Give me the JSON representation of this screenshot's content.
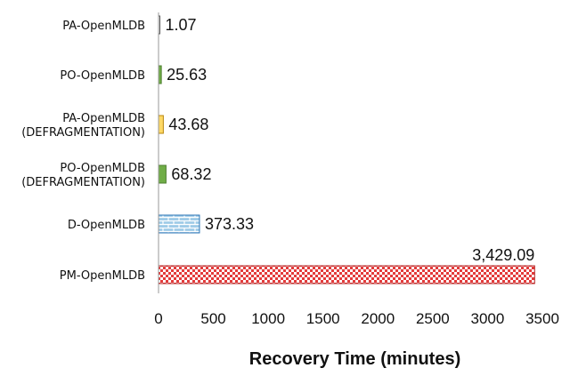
{
  "chart_data": {
    "type": "bar",
    "orientation": "horizontal",
    "categories": [
      [
        "PA-OpenMLDB"
      ],
      [
        "PO-OpenMLDB"
      ],
      [
        "PA-OpenMLDB",
        "(DEFRAGMENTATION)"
      ],
      [
        "PO-OpenMLDB",
        "(DEFRAGMENTATION)"
      ],
      [
        "D-OpenMLDB"
      ],
      [
        "PM-OpenMLDB"
      ]
    ],
    "values": [
      1.07,
      25.63,
      43.68,
      68.32,
      373.33,
      3429.09
    ],
    "value_labels": [
      "1.07",
      "25.63",
      "43.68",
      "68.32",
      "373.33",
      "3,429.09"
    ],
    "bar_styles": [
      {
        "fill": "#ffffff",
        "stroke": "#555555",
        "pattern": "none"
      },
      {
        "fill": "#70ad47",
        "stroke": "#4e7f30",
        "pattern": "none"
      },
      {
        "fill": "#ffd966",
        "stroke": "#b8860b",
        "pattern": "none"
      },
      {
        "fill": "#70ad47",
        "stroke": "#4e7f30",
        "pattern": "none"
      },
      {
        "fill": "#5ba3d0",
        "stroke": "#2e75b6",
        "pattern": "brick"
      },
      {
        "fill": "#e33b3b",
        "stroke": "#b11f1f",
        "pattern": "checker"
      }
    ],
    "x_ticks": [
      0,
      500,
      1000,
      1500,
      2000,
      2500,
      3000,
      3500
    ],
    "xlim": [
      0,
      3500
    ],
    "xlabel": "Recovery Time (minutes)",
    "grid": false
  }
}
